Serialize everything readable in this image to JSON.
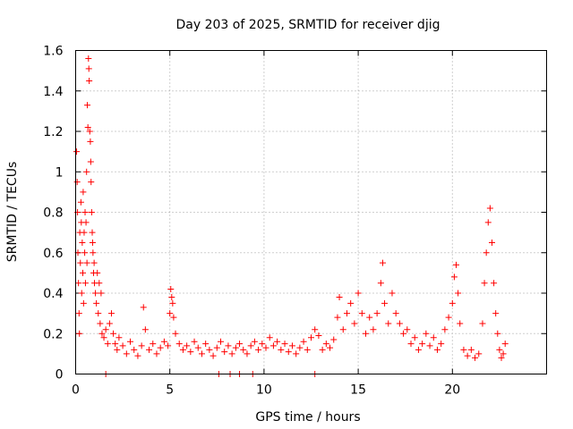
{
  "chart_data": {
    "type": "scatter",
    "title": "Day 203 of 2025, SRMTID for receiver djig",
    "xlabel": "GPS time / hours",
    "ylabel": "SRMTID / TECUs",
    "xlim": [
      0,
      25
    ],
    "ylim": [
      0,
      1.6
    ],
    "xticks": [
      0,
      5,
      10,
      15,
      20
    ],
    "xtick_labels": [
      "0",
      "5",
      "10",
      "15",
      "20"
    ],
    "yticks": [
      0,
      0.2,
      0.4,
      0.6,
      0.8,
      1.0,
      1.2,
      1.4,
      1.6
    ],
    "ytick_labels": [
      "0",
      "0.2",
      "0.4",
      "0.6",
      "0.8",
      "1",
      "1.2",
      "1.4",
      "1.6"
    ],
    "grid": true,
    "marker": "+",
    "color": "#ff0000",
    "series": [
      {
        "name": "SRMTID",
        "points": [
          [
            0.05,
            1.1
          ],
          [
            0.08,
            0.95
          ],
          [
            0.1,
            0.8
          ],
          [
            0.12,
            0.6
          ],
          [
            0.15,
            0.45
          ],
          [
            0.18,
            0.3
          ],
          [
            0.2,
            0.2
          ],
          [
            0.22,
            0.7
          ],
          [
            0.25,
            0.55
          ],
          [
            0.28,
            0.85
          ],
          [
            0.3,
            0.75
          ],
          [
            0.32,
            0.4
          ],
          [
            0.35,
            0.65
          ],
          [
            0.38,
            0.5
          ],
          [
            0.4,
            0.9
          ],
          [
            0.42,
            0.35
          ],
          [
            0.45,
            0.7
          ],
          [
            0.48,
            0.6
          ],
          [
            0.5,
            0.8
          ],
          [
            0.52,
            0.45
          ],
          [
            0.55,
            0.75
          ],
          [
            0.58,
            1.0
          ],
          [
            0.6,
            0.55
          ],
          [
            0.62,
            1.33
          ],
          [
            0.65,
            1.22
          ],
          [
            0.68,
            1.56
          ],
          [
            0.7,
            1.51
          ],
          [
            0.72,
            1.45
          ],
          [
            0.75,
            1.2
          ],
          [
            0.78,
            1.15
          ],
          [
            0.8,
            1.05
          ],
          [
            0.82,
            0.95
          ],
          [
            0.85,
            0.8
          ],
          [
            0.88,
            0.7
          ],
          [
            0.9,
            0.65
          ],
          [
            0.92,
            0.6
          ],
          [
            0.95,
            0.5
          ],
          [
            0.98,
            0.55
          ],
          [
            1.0,
            0.45
          ],
          [
            1.05,
            0.4
          ],
          [
            1.1,
            0.35
          ],
          [
            1.15,
            0.5
          ],
          [
            1.2,
            0.3
          ],
          [
            1.25,
            0.45
          ],
          [
            1.3,
            0.25
          ],
          [
            1.35,
            0.4
          ],
          [
            1.4,
            0.2
          ],
          [
            1.5,
            0.18
          ],
          [
            1.6,
            0.22
          ],
          [
            1.7,
            0.15
          ],
          [
            1.8,
            0.25
          ],
          [
            1.9,
            0.3
          ],
          [
            2.0,
            0.2
          ],
          [
            2.1,
            0.15
          ],
          [
            2.2,
            0.12
          ],
          [
            2.3,
            0.18
          ],
          [
            2.5,
            0.14
          ],
          [
            2.7,
            0.1
          ],
          [
            2.9,
            0.16
          ],
          [
            3.1,
            0.12
          ],
          [
            3.3,
            0.09
          ],
          [
            3.5,
            0.14
          ],
          [
            3.6,
            0.33
          ],
          [
            3.7,
            0.22
          ],
          [
            3.9,
            0.12
          ],
          [
            4.1,
            0.15
          ],
          [
            4.3,
            0.1
          ],
          [
            4.5,
            0.13
          ],
          [
            4.7,
            0.16
          ],
          [
            4.9,
            0.14
          ],
          [
            5.0,
            0.3
          ],
          [
            5.05,
            0.42
          ],
          [
            5.1,
            0.38
          ],
          [
            5.15,
            0.35
          ],
          [
            5.2,
            0.28
          ],
          [
            5.3,
            0.2
          ],
          [
            5.5,
            0.15
          ],
          [
            5.7,
            0.12
          ],
          [
            5.9,
            0.14
          ],
          [
            6.1,
            0.11
          ],
          [
            6.3,
            0.16
          ],
          [
            6.5,
            0.13
          ],
          [
            6.7,
            0.1
          ],
          [
            6.9,
            0.15
          ],
          [
            7.1,
            0.12
          ],
          [
            7.3,
            0.09
          ],
          [
            7.5,
            0.13
          ],
          [
            7.7,
            0.16
          ],
          [
            7.9,
            0.11
          ],
          [
            8.1,
            0.14
          ],
          [
            8.3,
            0.1
          ],
          [
            8.5,
            0.13
          ],
          [
            8.7,
            0.15
          ],
          [
            8.9,
            0.12
          ],
          [
            9.1,
            0.1
          ],
          [
            9.3,
            0.14
          ],
          [
            9.5,
            0.16
          ],
          [
            9.7,
            0.12
          ],
          [
            9.9,
            0.15
          ],
          [
            10.1,
            0.13
          ],
          [
            10.3,
            0.18
          ],
          [
            10.5,
            0.14
          ],
          [
            10.7,
            0.16
          ],
          [
            10.9,
            0.12
          ],
          [
            11.1,
            0.15
          ],
          [
            11.3,
            0.11
          ],
          [
            11.5,
            0.14
          ],
          [
            11.7,
            0.1
          ],
          [
            11.9,
            0.13
          ],
          [
            12.1,
            0.16
          ],
          [
            12.3,
            0.12
          ],
          [
            12.5,
            0.18
          ],
          [
            12.7,
            0.22
          ],
          [
            12.9,
            0.19
          ],
          [
            13.1,
            0.12
          ],
          [
            13.3,
            0.15
          ],
          [
            13.5,
            0.13
          ],
          [
            13.7,
            0.17
          ],
          [
            13.9,
            0.28
          ],
          [
            14.0,
            0.38
          ],
          [
            14.2,
            0.22
          ],
          [
            14.4,
            0.3
          ],
          [
            14.6,
            0.35
          ],
          [
            14.8,
            0.25
          ],
          [
            15.0,
            0.4
          ],
          [
            15.2,
            0.3
          ],
          [
            15.4,
            0.2
          ],
          [
            15.6,
            0.28
          ],
          [
            15.8,
            0.22
          ],
          [
            16.0,
            0.3
          ],
          [
            16.2,
            0.45
          ],
          [
            16.3,
            0.55
          ],
          [
            16.4,
            0.35
          ],
          [
            16.6,
            0.25
          ],
          [
            16.8,
            0.4
          ],
          [
            17.0,
            0.3
          ],
          [
            17.2,
            0.25
          ],
          [
            17.4,
            0.2
          ],
          [
            17.6,
            0.22
          ],
          [
            17.8,
            0.15
          ],
          [
            18.0,
            0.18
          ],
          [
            18.2,
            0.12
          ],
          [
            18.4,
            0.15
          ],
          [
            18.6,
            0.2
          ],
          [
            18.8,
            0.14
          ],
          [
            19.0,
            0.18
          ],
          [
            19.2,
            0.12
          ],
          [
            19.4,
            0.15
          ],
          [
            19.6,
            0.22
          ],
          [
            19.8,
            0.28
          ],
          [
            20.0,
            0.35
          ],
          [
            20.1,
            0.48
          ],
          [
            20.2,
            0.54
          ],
          [
            20.3,
            0.4
          ],
          [
            20.4,
            0.25
          ],
          [
            20.6,
            0.12
          ],
          [
            20.8,
            0.09
          ],
          [
            21.0,
            0.12
          ],
          [
            21.2,
            0.08
          ],
          [
            21.4,
            0.1
          ],
          [
            21.6,
            0.25
          ],
          [
            21.7,
            0.45
          ],
          [
            21.8,
            0.6
          ],
          [
            21.9,
            0.75
          ],
          [
            22.0,
            0.82
          ],
          [
            22.1,
            0.65
          ],
          [
            22.2,
            0.45
          ],
          [
            22.3,
            0.3
          ],
          [
            22.4,
            0.2
          ],
          [
            22.5,
            0.12
          ],
          [
            22.6,
            0.08
          ],
          [
            22.7,
            0.1
          ],
          [
            22.8,
            0.15
          ],
          [
            1.6,
            0.0
          ],
          [
            7.6,
            0.0
          ],
          [
            8.2,
            0.0
          ],
          [
            8.7,
            0.0
          ],
          [
            9.4,
            0.0
          ],
          [
            12.7,
            0.0
          ]
        ]
      }
    ]
  }
}
